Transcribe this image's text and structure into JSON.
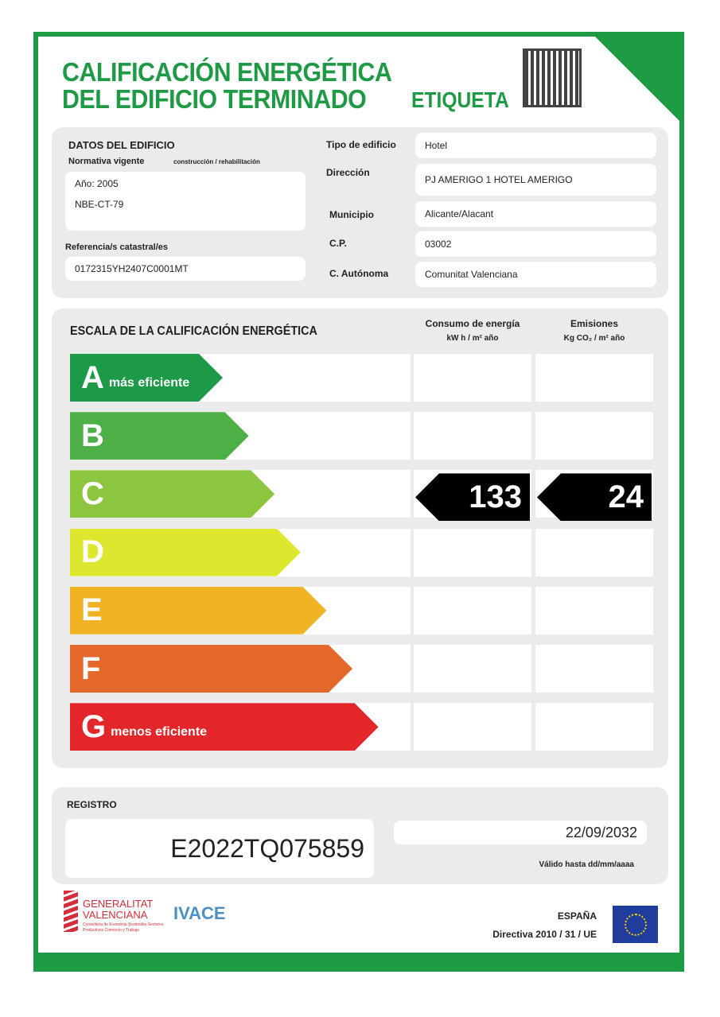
{
  "title": {
    "line1": "CALIFICACIÓN ENERGÉTICA",
    "line2": "DEL EDIFICIO  TERMINADO",
    "label": "ETIQUETA"
  },
  "datos": {
    "heading": "DATOS DEL EDIFICIO",
    "normativa_label": "Normativa vigente",
    "normativa_sub": "construcción / rehabilitación",
    "anio": "Año: 2005",
    "norma": "NBE-CT-79",
    "ref_label": "Referencia/s catastral/es",
    "ref_value": "0172315YH2407C0001MT",
    "fields": [
      {
        "label": "Tipo de edificio",
        "value": "Hotel"
      },
      {
        "label": "Dirección",
        "value": "PJ AMERIGO 1 HOTEL AMERIGO"
      },
      {
        "label": "Municipio",
        "value": "Alicante/Alacant"
      },
      {
        "label": "C.P.",
        "value": "03002"
      },
      {
        "label": "C. Autónoma",
        "value": "Comunitat Valenciana"
      }
    ]
  },
  "escala": {
    "heading": "ESCALA DE LA CALIFICACIÓN ENERGÉTICA",
    "col1": "Consumo de energía",
    "col1_unit": "kW h / m² año",
    "col2": "Emisiones",
    "col2_unit": "Kg CO₂ / m² año",
    "classes": [
      {
        "letter": "A",
        "text": "más eficiente",
        "color": "#1d9a48"
      },
      {
        "letter": "B",
        "text": "",
        "color": "#4cb047"
      },
      {
        "letter": "C",
        "text": "",
        "color": "#8cc63f"
      },
      {
        "letter": "D",
        "text": "",
        "color": "#dde72d"
      },
      {
        "letter": "E",
        "text": "",
        "color": "#f0b323"
      },
      {
        "letter": "F",
        "text": "",
        "color": "#e4682a"
      },
      {
        "letter": "G",
        "text": "menos eficiente",
        "color": "#e2262a"
      }
    ],
    "rating_class": "C",
    "consumo": "133",
    "emisiones": "24"
  },
  "registro": {
    "heading": "REGISTRO",
    "number": "E2022TQ075859",
    "valid_date": "22/09/2032",
    "valid_label": "Válido hasta dd/mm/aaaa"
  },
  "footer": {
    "gv1": "GENERALITAT",
    "gv2": "VALENCIANA",
    "gv_sub": "Conselleria de Economia Sostenible Sectores Productivos Comercio y Trabajo",
    "ivace": "IVACE",
    "espana": "ESPAÑA",
    "directiva": "Directiva 2010 / 31 / UE"
  },
  "colors": {
    "brand_green": "#1e9a45"
  }
}
